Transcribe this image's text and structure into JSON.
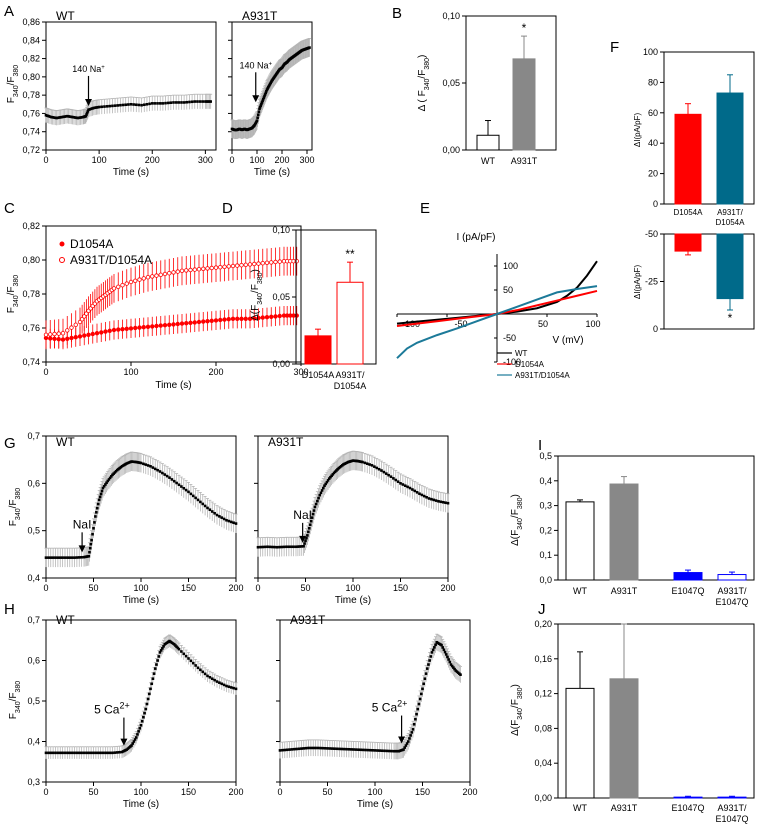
{
  "panel_labels": {
    "A": "A",
    "B": "B",
    "C": "C",
    "D": "D",
    "E": "E",
    "F": "F",
    "G": "G",
    "H": "H",
    "I": "I",
    "J": "J"
  },
  "colors": {
    "black": "#000000",
    "gray": "#888888",
    "errgray": "#b5b5b5",
    "red": "#ff0000",
    "teal": "#006a8a",
    "blue": "#0000ff",
    "e_teal": "#1c7a99"
  },
  "chart_data": [
    {
      "id": "A1",
      "panel": "A",
      "type": "line",
      "title": "WT",
      "xlabel": "Time (s)",
      "ylabel": "F340/F380",
      "xlim": [
        0,
        320
      ],
      "ylim": [
        0.72,
        0.86
      ],
      "yticks": [
        "0,72",
        "0,74",
        "0,76",
        "0,78",
        "0,80",
        "0,82",
        "0,84",
        "0,86"
      ],
      "xticks": [
        "0",
        "100",
        "200",
        "300"
      ],
      "annotation": {
        "text": "140 Na+",
        "x": 80,
        "y": 0.766
      },
      "series": [
        {
          "name": "WT",
          "x": [
            0,
            10,
            20,
            30,
            40,
            50,
            60,
            70,
            75,
            80,
            90,
            100,
            120,
            140,
            160,
            180,
            200,
            220,
            240,
            260,
            280,
            300,
            310
          ],
          "y": [
            0.758,
            0.756,
            0.755,
            0.756,
            0.757,
            0.756,
            0.755,
            0.756,
            0.757,
            0.764,
            0.766,
            0.767,
            0.768,
            0.769,
            0.77,
            0.769,
            0.771,
            0.771,
            0.772,
            0.772,
            0.773,
            0.773,
            0.773
          ],
          "err": 0.008
        }
      ]
    },
    {
      "id": "A2",
      "panel": "A",
      "type": "line",
      "title": "A931T",
      "xlabel": "Time (s)",
      "ylabel": "",
      "xlim": [
        0,
        320
      ],
      "ylim": [
        0.72,
        0.86
      ],
      "yticks": [],
      "xticks": [
        "0",
        "100",
        "200",
        "300"
      ],
      "annotation": {
        "text": "140 Na+",
        "x": 95,
        "y": 0.77
      },
      "series": [
        {
          "name": "A931T",
          "x": [
            0,
            10,
            20,
            30,
            40,
            50,
            60,
            70,
            80,
            90,
            100,
            110,
            120,
            130,
            140,
            150,
            160,
            170,
            180,
            190,
            200,
            210,
            220,
            230,
            240,
            250,
            260,
            270,
            280,
            290,
            300,
            310
          ],
          "y": [
            0.743,
            0.742,
            0.742,
            0.743,
            0.742,
            0.743,
            0.742,
            0.743,
            0.744,
            0.747,
            0.752,
            0.765,
            0.772,
            0.779,
            0.786,
            0.791,
            0.796,
            0.8,
            0.804,
            0.808,
            0.81,
            0.814,
            0.816,
            0.819,
            0.821,
            0.823,
            0.825,
            0.827,
            0.829,
            0.83,
            0.831,
            0.832
          ],
          "err": 0.01
        }
      ]
    },
    {
      "id": "B",
      "panel": "B",
      "type": "bar",
      "title": "",
      "ylabel": "Δ (F340/F380)",
      "ylim": [
        0,
        0.1
      ],
      "yticks": [
        "0,00",
        "0,05",
        "0,10"
      ],
      "categories": [
        "WT",
        "A931T"
      ],
      "values": [
        0.011,
        0.068
      ],
      "errors": [
        0.011,
        0.017
      ],
      "fills": [
        "#ffffff",
        "#888888"
      ],
      "stars": [
        "",
        "*"
      ]
    },
    {
      "id": "C",
      "panel": "C",
      "type": "scatter",
      "title": "",
      "xlabel": "Time (s)",
      "ylabel": "F340/F380",
      "xlim": [
        0,
        300
      ],
      "ylim": [
        0.74,
        0.825
      ],
      "yticks": [
        "0,74",
        "0,76",
        "0,78",
        "0,80",
        "0,82"
      ],
      "xticks": [
        "0",
        "100",
        "200",
        "300"
      ],
      "legend": [
        "D1054A",
        "A931T/D1054A"
      ],
      "series": [
        {
          "name": "D1054A",
          "x": [
            0,
            20,
            40,
            60,
            80,
            100,
            120,
            140,
            160,
            180,
            200,
            220,
            240,
            260,
            280,
            295
          ],
          "y": [
            0.755,
            0.754,
            0.756,
            0.758,
            0.76,
            0.761,
            0.762,
            0.763,
            0.764,
            0.765,
            0.766,
            0.767,
            0.767,
            0.768,
            0.769,
            0.769
          ],
          "err": 0.006,
          "style": "filled"
        },
        {
          "name": "A931T/D1054A",
          "x": [
            0,
            20,
            40,
            50,
            60,
            70,
            80,
            100,
            120,
            140,
            160,
            180,
            200,
            220,
            240,
            260,
            280,
            295
          ],
          "y": [
            0.757,
            0.758,
            0.765,
            0.772,
            0.778,
            0.782,
            0.786,
            0.79,
            0.793,
            0.795,
            0.797,
            0.798,
            0.799,
            0.8,
            0.801,
            0.802,
            0.803,
            0.803
          ],
          "err": 0.009,
          "style": "open"
        }
      ]
    },
    {
      "id": "D",
      "panel": "D",
      "type": "bar",
      "title": "",
      "ylabel": "Δ(F340/F380)",
      "ylim": [
        0,
        0.1
      ],
      "yticks": [
        "0,00",
        "0,05",
        "0,10"
      ],
      "categories": [
        "D1054A",
        "A931T/ D1054A"
      ],
      "values": [
        0.021,
        0.061
      ],
      "errors": [
        0.005,
        0.015
      ],
      "fills": [
        "#ff0000",
        "#ffffff"
      ],
      "stars": [
        "",
        "**"
      ]
    },
    {
      "id": "E",
      "panel": "E",
      "type": "line",
      "title": "",
      "xlabel": "V (mV)",
      "ylabel": "I (pA/pF)",
      "xlim": [
        -100,
        100
      ],
      "ylim": [
        -100,
        125
      ],
      "xticks": [
        "-100",
        "-50",
        "50",
        "100"
      ],
      "yticks": [
        "-100",
        "-50",
        "50",
        "100"
      ],
      "series": [
        {
          "name": "WT",
          "x": [
            -100,
            -80,
            -60,
            -40,
            -20,
            0,
            20,
            40,
            60,
            70,
            80,
            90,
            100
          ],
          "y": [
            -20,
            -16,
            -12,
            -8,
            -4,
            0,
            5,
            12,
            25,
            38,
            55,
            80,
            110
          ]
        },
        {
          "name": "D1054A",
          "x": [
            -100,
            -80,
            -60,
            -40,
            -20,
            0,
            20,
            40,
            60,
            80,
            100
          ],
          "y": [
            -25,
            -20,
            -15,
            -10,
            -5,
            0,
            8,
            18,
            28,
            38,
            48
          ]
        },
        {
          "name": "A931T/D1054A",
          "x": [
            -100,
            -90,
            -80,
            -60,
            -40,
            -20,
            0,
            20,
            40,
            60,
            80,
            100
          ],
          "y": [
            -92,
            -72,
            -60,
            -44,
            -30,
            -15,
            0,
            15,
            30,
            45,
            52,
            58
          ]
        }
      ]
    },
    {
      "id": "F1",
      "panel": "F",
      "type": "bar",
      "title": "",
      "ylabel": "ΔI(pA/pF)",
      "ylim": [
        0,
        100
      ],
      "yticks": [
        "0",
        "20",
        "40",
        "60",
        "80",
        "100"
      ],
      "categories": [
        "D1054A",
        "A931T/ D1054A"
      ],
      "values": [
        59,
        73
      ],
      "errors": [
        7,
        12
      ],
      "fills": [
        "#ff0000",
        "#006a8a"
      ],
      "stars": [
        "",
        ""
      ]
    },
    {
      "id": "F2",
      "panel": "F",
      "type": "bar",
      "title": "",
      "ylabel": "ΔI(pA/pF)",
      "ylim": [
        -50,
        0
      ],
      "yticks": [
        "0",
        "-25",
        "-50"
      ],
      "categories": [
        "D1054A",
        "A931T/ D1054A"
      ],
      "values": [
        -9,
        -34
      ],
      "errors": [
        2,
        6
      ],
      "fills": [
        "#ff0000",
        "#006a8a"
      ],
      "stars": [
        "",
        "*"
      ]
    },
    {
      "id": "G1",
      "panel": "G",
      "type": "line",
      "title": "WT",
      "xlabel": "Time (s)",
      "ylabel": "F340/F380",
      "xlim": [
        0,
        200
      ],
      "ylim": [
        0.4,
        0.7
      ],
      "yticks": [
        "0,4",
        "0,5",
        "0,6",
        "0,7"
      ],
      "xticks": [
        "0",
        "50",
        "100",
        "150",
        "200"
      ],
      "annotation": {
        "text": "NaI",
        "x": 38,
        "y": 0.45
      },
      "series": [
        {
          "name": "WT",
          "x": [
            0,
            10,
            20,
            30,
            40,
            45,
            48,
            52,
            56,
            60,
            65,
            70,
            75,
            80,
            85,
            90,
            95,
            100,
            110,
            120,
            130,
            140,
            150,
            160,
            170,
            180,
            190,
            200
          ],
          "y": [
            0.443,
            0.443,
            0.443,
            0.443,
            0.444,
            0.446,
            0.48,
            0.53,
            0.565,
            0.59,
            0.605,
            0.618,
            0.628,
            0.636,
            0.642,
            0.646,
            0.645,
            0.643,
            0.636,
            0.625,
            0.612,
            0.597,
            0.582,
            0.565,
            0.548,
            0.533,
            0.522,
            0.515
          ],
          "err": 0.02
        }
      ]
    },
    {
      "id": "G2",
      "panel": "G",
      "type": "line",
      "title": "A931T",
      "xlabel": "Time (s)",
      "ylabel": "",
      "xlim": [
        0,
        200
      ],
      "ylim": [
        0.4,
        0.7
      ],
      "yticks": [],
      "xticks": [
        "0",
        "50",
        "100",
        "150",
        "200"
      ],
      "annotation": {
        "text": "NaI",
        "x": 47,
        "y": 0.47
      },
      "series": [
        {
          "name": "A931T",
          "x": [
            0,
            10,
            20,
            30,
            40,
            48,
            52,
            56,
            60,
            65,
            70,
            75,
            80,
            85,
            90,
            95,
            100,
            105,
            110,
            120,
            130,
            140,
            150,
            160,
            170,
            180,
            190,
            200
          ],
          "y": [
            0.465,
            0.466,
            0.465,
            0.466,
            0.466,
            0.467,
            0.49,
            0.52,
            0.55,
            0.575,
            0.595,
            0.61,
            0.622,
            0.632,
            0.64,
            0.645,
            0.648,
            0.647,
            0.645,
            0.638,
            0.627,
            0.614,
            0.6,
            0.59,
            0.578,
            0.568,
            0.562,
            0.558
          ],
          "err": 0.02
        }
      ]
    },
    {
      "id": "I",
      "panel": "I",
      "type": "bar",
      "title": "",
      "ylabel": "Δ(F340/F380)",
      "ylim": [
        0,
        0.5
      ],
      "yticks": [
        "0,0",
        "0,1",
        "0,2",
        "0,3",
        "0,4",
        "0,5"
      ],
      "categories": [
        "WT",
        "A931T",
        "E1047Q",
        "A931T/ E1047Q"
      ],
      "values": [
        0.315,
        0.387,
        0.03,
        0.022
      ],
      "errors": [
        0.008,
        0.03,
        0.01,
        0.01
      ],
      "fills": [
        "#ffffff",
        "#888888",
        "#0000ff",
        "#ffffff"
      ],
      "stars": [
        "",
        "",
        "",
        ""
      ]
    },
    {
      "id": "H1",
      "panel": "H",
      "type": "line",
      "title": "WT",
      "xlabel": "Time (s)",
      "ylabel": "F340/F380",
      "xlim": [
        0,
        200
      ],
      "ylim": [
        0.3,
        0.7
      ],
      "yticks": [
        "0,3",
        "0,4",
        "0,5",
        "0,6",
        "0,7"
      ],
      "xticks": [
        "0",
        "50",
        "100",
        "150",
        "200"
      ],
      "annotation": {
        "text": "5 Ca2+",
        "x": 82,
        "y": 0.385
      },
      "series": [
        {
          "name": "WT",
          "x": [
            0,
            10,
            20,
            30,
            40,
            50,
            60,
            70,
            80,
            85,
            90,
            95,
            100,
            105,
            110,
            115,
            120,
            125,
            130,
            135,
            140,
            150,
            160,
            170,
            180,
            190,
            200
          ],
          "y": [
            0.372,
            0.372,
            0.372,
            0.372,
            0.372,
            0.372,
            0.372,
            0.372,
            0.374,
            0.38,
            0.39,
            0.41,
            0.44,
            0.48,
            0.53,
            0.58,
            0.62,
            0.64,
            0.648,
            0.64,
            0.628,
            0.605,
            0.582,
            0.562,
            0.548,
            0.537,
            0.53
          ],
          "err": 0.015
        }
      ]
    },
    {
      "id": "H2",
      "panel": "H",
      "type": "line",
      "title": "A931T",
      "xlabel": "Time (s)",
      "ylabel": "",
      "xlim": [
        0,
        200
      ],
      "ylim": [
        0.3,
        0.7
      ],
      "yticks": [],
      "xticks": [
        "0",
        "50",
        "100",
        "150",
        "200"
      ],
      "annotation": {
        "text": "5 Ca2+",
        "x": 128,
        "y": 0.39
      },
      "series": [
        {
          "name": "A931T",
          "x": [
            0,
            10,
            20,
            30,
            40,
            50,
            60,
            70,
            80,
            90,
            100,
            110,
            120,
            125,
            130,
            135,
            140,
            145,
            150,
            155,
            160,
            165,
            170,
            175,
            180,
            185,
            190
          ],
          "y": [
            0.378,
            0.38,
            0.382,
            0.384,
            0.384,
            0.383,
            0.382,
            0.381,
            0.38,
            0.379,
            0.378,
            0.377,
            0.376,
            0.376,
            0.38,
            0.4,
            0.43,
            0.48,
            0.53,
            0.58,
            0.62,
            0.645,
            0.638,
            0.615,
            0.59,
            0.575,
            0.565
          ],
          "err": 0.02
        }
      ]
    },
    {
      "id": "J",
      "panel": "J",
      "type": "bar",
      "title": "",
      "ylabel": "Δ(F340/F380)",
      "ylim": [
        0,
        0.2
      ],
      "yticks": [
        "0,00",
        "0,04",
        "0,08",
        "0,12",
        "0,16",
        "0,20"
      ],
      "categories": [
        "WT",
        "A931T",
        "E1047Q",
        "A931T/ E1047Q"
      ],
      "values": [
        0.126,
        0.137,
        0.001,
        0.001
      ],
      "errors": [
        0.042,
        0.063,
        0.001,
        0.001
      ],
      "fills": [
        "#ffffff",
        "#888888",
        "#0000ff",
        "#ffffff"
      ],
      "stars": [
        "",
        "",
        "",
        ""
      ]
    }
  ]
}
